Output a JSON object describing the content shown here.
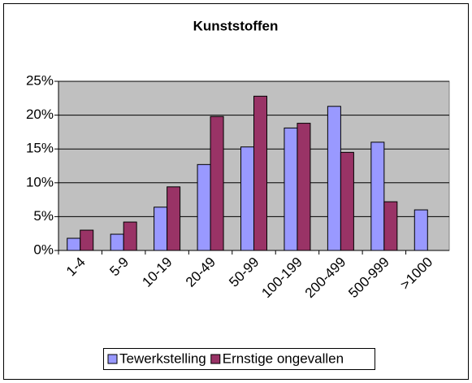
{
  "chart_data": {
    "type": "bar",
    "title": "Kunststoffen",
    "categories": [
      "1-4",
      "5-9",
      "10-19",
      "20-49",
      "50-99",
      "100-199",
      "200-499",
      "500-999",
      ">1000"
    ],
    "series": [
      {
        "name": "Tewerkstelling",
        "color": "#9999ff",
        "values": [
          1.8,
          2.4,
          6.4,
          12.7,
          15.3,
          18.1,
          21.3,
          16.0,
          6.0
        ]
      },
      {
        "name": "Ernstige ongevallen",
        "color": "#993366",
        "values": [
          3.0,
          4.2,
          9.4,
          19.8,
          22.8,
          18.8,
          14.5,
          7.2,
          null
        ]
      }
    ],
    "ylim": [
      0,
      25
    ],
    "yticks": [
      {
        "value": 0,
        "label": "0%"
      },
      {
        "value": 5,
        "label": "5%"
      },
      {
        "value": 10,
        "label": "10%"
      },
      {
        "value": 15,
        "label": "15%"
      },
      {
        "value": 20,
        "label": "20%"
      },
      {
        "value": 25,
        "label": "25%"
      }
    ],
    "grid": true,
    "legend": "bottom"
  }
}
